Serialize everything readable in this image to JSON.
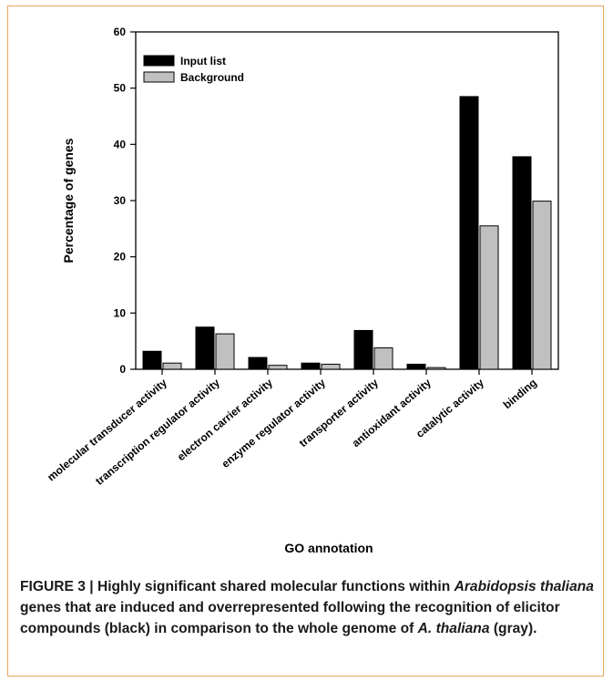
{
  "chart_data": {
    "type": "bar",
    "title": "",
    "xlabel": "GO annotation",
    "ylabel": "Percentage of genes",
    "ylim": [
      0,
      60
    ],
    "yticks": [
      0,
      10,
      20,
      30,
      40,
      50,
      60
    ],
    "categories": [
      "molecular transducer activity",
      "transcription regulator activity",
      "electron carrier activity",
      "enzyme regulator activity",
      "transporter activity",
      "antioxidant activity",
      "catalytic activity",
      "binding"
    ],
    "series": [
      {
        "name": "Input list",
        "color": "#000000",
        "values": [
          3.2,
          7.5,
          2.1,
          1.1,
          6.9,
          0.9,
          48.5,
          37.8
        ]
      },
      {
        "name": "Background",
        "color": "#c0c0c0",
        "values": [
          1.1,
          6.3,
          0.7,
          0.9,
          3.8,
          0.3,
          25.5,
          29.9
        ]
      }
    ],
    "legend_position": "top-left",
    "grid": false
  },
  "caption": {
    "parts": [
      {
        "text": "FIGURE 3 | Highly significant shared molecular functions within ",
        "italic": false
      },
      {
        "text": "Arabidopsis thaliana",
        "italic": true
      },
      {
        "text": " genes that are induced and overrepresented following the recognition of elicitor compounds (black) in comparison to the whole genome of ",
        "italic": false
      },
      {
        "text": "A. thaliana",
        "italic": true
      },
      {
        "text": " (gray).",
        "italic": false
      }
    ]
  }
}
